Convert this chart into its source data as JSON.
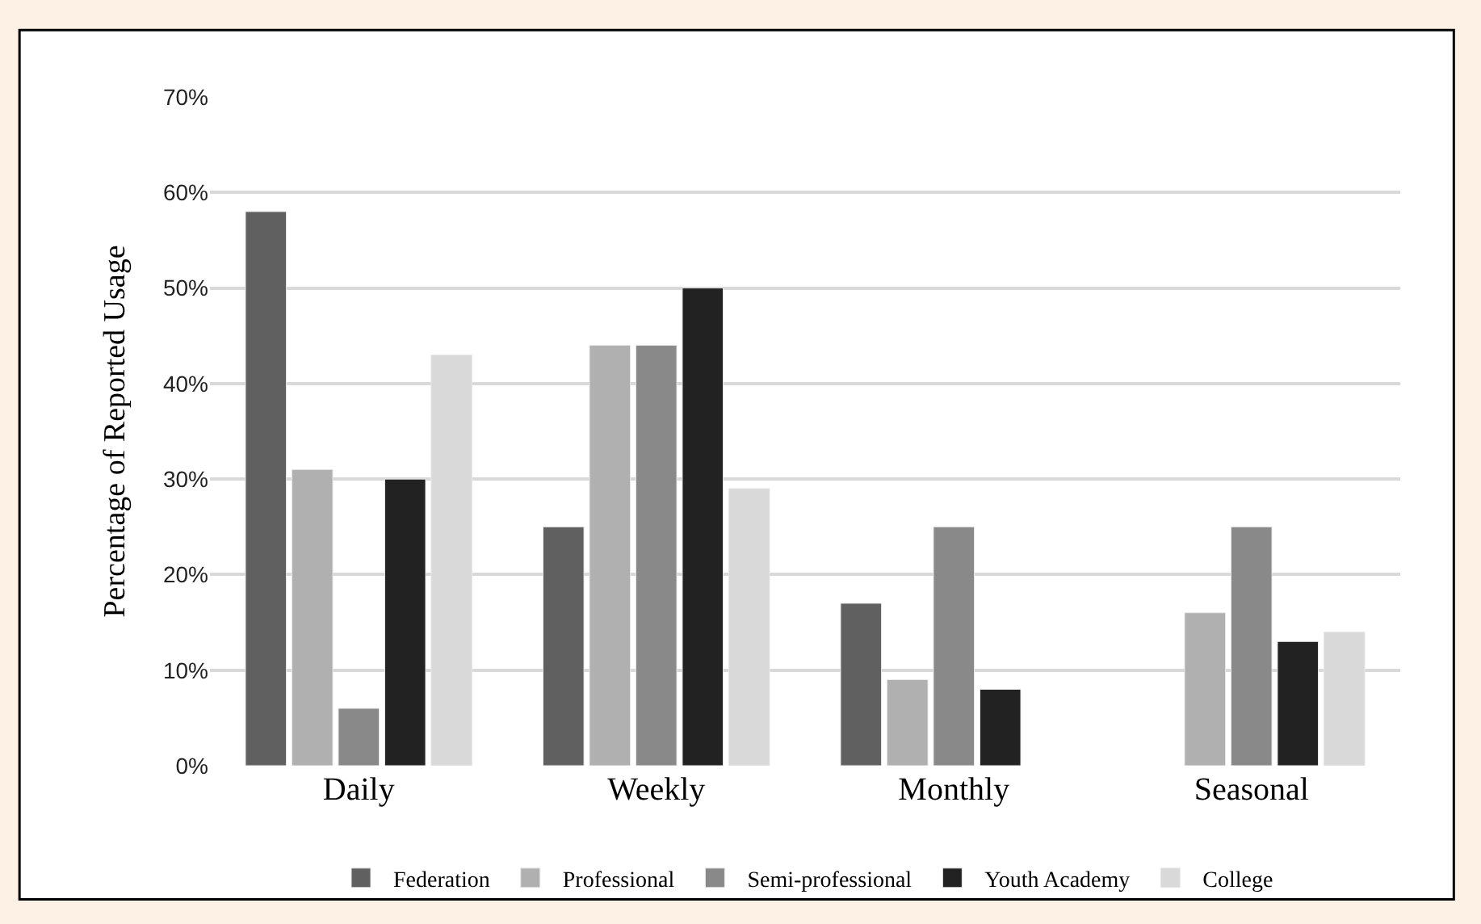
{
  "chart_data": {
    "type": "bar",
    "ylabel": "Percentage of Reported Usage",
    "categories": [
      "Daily",
      "Weekly",
      "Monthly",
      "Seasonal"
    ],
    "series": [
      {
        "name": "Federation",
        "color": "#606060",
        "values": [
          58,
          25,
          17,
          null
        ]
      },
      {
        "name": "Professional",
        "color": "#b0b0b0",
        "values": [
          31,
          44,
          9,
          16
        ]
      },
      {
        "name": "Semi-professional",
        "color": "#898989",
        "values": [
          6,
          44,
          25,
          25
        ]
      },
      {
        "name": "Youth Academy",
        "color": "#222222",
        "values": [
          30,
          50,
          8,
          13
        ]
      },
      {
        "name": "College",
        "color": "#d9d9d9",
        "values": [
          43,
          29,
          null,
          14
        ]
      }
    ],
    "ylim": [
      0,
      70
    ],
    "yticks": [
      {
        "value": 0,
        "label": "0%"
      },
      {
        "value": 10,
        "label": "10%"
      },
      {
        "value": 20,
        "label": "20%"
      },
      {
        "value": 30,
        "label": "30%"
      },
      {
        "value": 40,
        "label": "40%"
      },
      {
        "value": 50,
        "label": "50%"
      },
      {
        "value": 60,
        "label": "60%"
      },
      {
        "value": 70,
        "label": "70%"
      }
    ],
    "grid": "y",
    "legend": "bottom"
  }
}
